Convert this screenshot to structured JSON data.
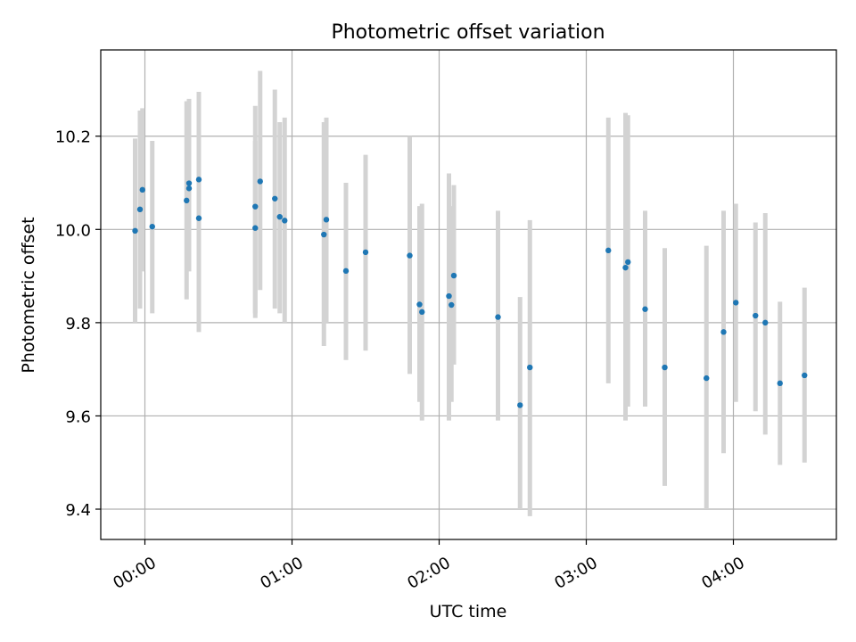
{
  "chart_data": {
    "type": "scatter",
    "title": "Photometric offset variation",
    "xlabel": "UTC time",
    "ylabel": "Photometric offset",
    "x_unit": "time of day (HH:MM, UTC)",
    "xlim": [
      "23:42",
      "04:42"
    ],
    "ylim": [
      9.335,
      10.385
    ],
    "yticks": [
      9.4,
      9.6,
      9.8,
      10.0,
      10.2
    ],
    "ytick_labels": [
      "9.4",
      "9.6",
      "9.8",
      "10.0",
      "10.2"
    ],
    "xticks": [
      "00:00",
      "01:00",
      "02:00",
      "03:00",
      "04:00"
    ],
    "xtick_labels": [
      "00:00",
      "01:00",
      "02:00",
      "03:00",
      "04:00"
    ],
    "grid": true,
    "point_color": "#1f77b4",
    "errorbar_color": "#d3d3d3",
    "series": [
      {
        "points": [
          {
            "x": "23:56",
            "y": 9.997,
            "lo": 9.8,
            "hi": 10.195
          },
          {
            "x": "23:58",
            "y": 10.043,
            "lo": 9.83,
            "hi": 10.255
          },
          {
            "x": "23:59",
            "y": 10.085,
            "lo": 9.91,
            "hi": 10.26
          },
          {
            "x": "00:03",
            "y": 10.006,
            "lo": 9.82,
            "hi": 10.19
          },
          {
            "x": "00:17",
            "y": 10.062,
            "lo": 9.85,
            "hi": 10.275
          },
          {
            "x": "00:18",
            "y": 10.088,
            "lo": 9.91,
            "hi": 10.27
          },
          {
            "x": "00:18",
            "y": 10.099,
            "lo": 9.92,
            "hi": 10.28
          },
          {
            "x": "00:22",
            "y": 10.107,
            "lo": 9.93,
            "hi": 10.295
          },
          {
            "x": "00:22",
            "y": 10.024,
            "lo": 9.78,
            "hi": 10.275
          },
          {
            "x": "00:45",
            "y": 10.003,
            "lo": 9.81,
            "hi": 10.19
          },
          {
            "x": "00:45",
            "y": 10.049,
            "lo": 9.82,
            "hi": 10.265
          },
          {
            "x": "00:47",
            "y": 10.103,
            "lo": 9.87,
            "hi": 10.34
          },
          {
            "x": "00:53",
            "y": 10.066,
            "lo": 9.83,
            "hi": 10.3
          },
          {
            "x": "00:55",
            "y": 10.027,
            "lo": 9.82,
            "hi": 10.23
          },
          {
            "x": "00:57",
            "y": 10.019,
            "lo": 9.8,
            "hi": 10.24
          },
          {
            "x": "01:13",
            "y": 9.989,
            "lo": 9.75,
            "hi": 10.23
          },
          {
            "x": "01:14",
            "y": 10.021,
            "lo": 9.8,
            "hi": 10.24
          },
          {
            "x": "01:22",
            "y": 9.911,
            "lo": 9.72,
            "hi": 10.1
          },
          {
            "x": "01:30",
            "y": 9.951,
            "lo": 9.74,
            "hi": 10.16
          },
          {
            "x": "01:48",
            "y": 9.944,
            "lo": 9.69,
            "hi": 10.2
          },
          {
            "x": "01:52",
            "y": 9.839,
            "lo": 9.63,
            "hi": 10.05
          },
          {
            "x": "01:53",
            "y": 9.823,
            "lo": 9.59,
            "hi": 10.055
          },
          {
            "x": "02:04",
            "y": 9.857,
            "lo": 9.59,
            "hi": 10.12
          },
          {
            "x": "02:05",
            "y": 9.838,
            "lo": 9.63,
            "hi": 10.05
          },
          {
            "x": "02:06",
            "y": 9.901,
            "lo": 9.71,
            "hi": 10.095
          },
          {
            "x": "02:24",
            "y": 9.812,
            "lo": 9.59,
            "hi": 10.04
          },
          {
            "x": "02:33",
            "y": 9.623,
            "lo": 9.4,
            "hi": 9.855
          },
          {
            "x": "02:37",
            "y": 9.704,
            "lo": 9.385,
            "hi": 10.02
          },
          {
            "x": "03:09",
            "y": 9.955,
            "lo": 9.67,
            "hi": 10.24
          },
          {
            "x": "03:16",
            "y": 9.918,
            "lo": 9.59,
            "hi": 10.25
          },
          {
            "x": "03:17",
            "y": 9.93,
            "lo": 9.62,
            "hi": 10.245
          },
          {
            "x": "03:24",
            "y": 9.829,
            "lo": 9.62,
            "hi": 10.04
          },
          {
            "x": "03:32",
            "y": 9.704,
            "lo": 9.45,
            "hi": 9.96
          },
          {
            "x": "03:49",
            "y": 9.681,
            "lo": 9.4,
            "hi": 9.965
          },
          {
            "x": "03:56",
            "y": 9.78,
            "lo": 9.52,
            "hi": 10.04
          },
          {
            "x": "04:01",
            "y": 9.843,
            "lo": 9.63,
            "hi": 10.055
          },
          {
            "x": "04:09",
            "y": 9.815,
            "lo": 9.61,
            "hi": 10.015
          },
          {
            "x": "04:13",
            "y": 9.8,
            "lo": 9.56,
            "hi": 10.035
          },
          {
            "x": "04:19",
            "y": 9.67,
            "lo": 9.495,
            "hi": 9.845
          },
          {
            "x": "04:29",
            "y": 9.687,
            "lo": 9.5,
            "hi": 9.875
          }
        ]
      }
    ]
  }
}
